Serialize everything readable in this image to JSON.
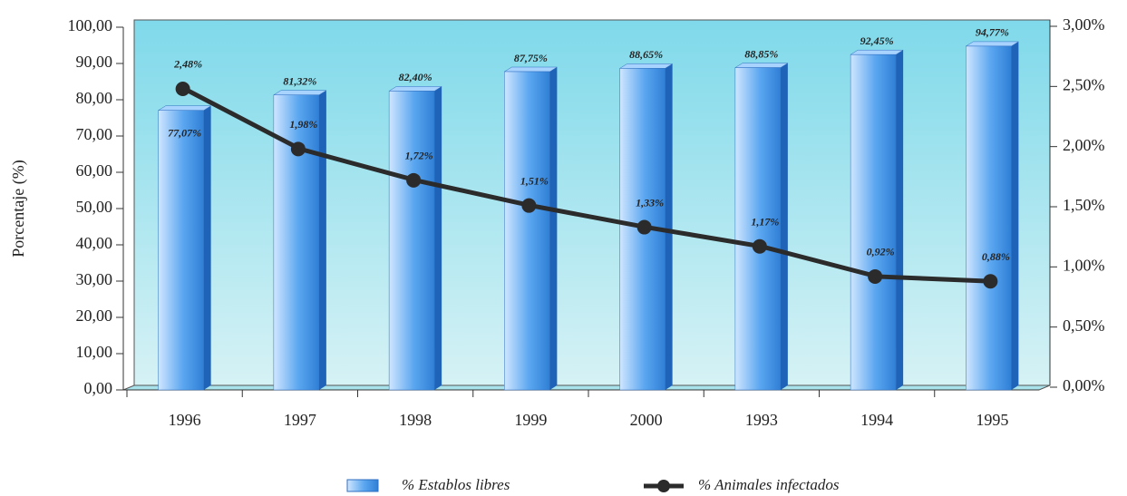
{
  "chart_data": {
    "type": "bar",
    "y_label": "Porcentaje (%)",
    "categories": [
      "1996",
      "1997",
      "1998",
      "1999",
      "2000",
      "1993",
      "1994",
      "1995"
    ],
    "series": [
      {
        "name": "% Establos libres",
        "type": "bar",
        "color": "#3d92e6",
        "values": [
          77.07,
          81.32,
          82.4,
          87.75,
          88.65,
          88.85,
          92.45,
          94.77
        ],
        "value_labels": [
          "77,07%",
          "81,32%",
          "82,40%",
          "87,75%",
          "88,65%",
          "88,85%",
          "92,45%",
          "94,77%"
        ]
      },
      {
        "name": "% Animales infectados",
        "type": "line",
        "axis": "y2",
        "color": "#2b2b2b",
        "values": [
          2.48,
          1.98,
          1.72,
          1.51,
          1.33,
          1.17,
          0.92,
          0.88
        ],
        "value_labels": [
          "2,48%",
          "1,98%",
          "1,72%",
          "1,51%",
          "1,33%",
          "1,17%",
          "0,92%",
          "0,88%"
        ]
      }
    ],
    "ylim": [
      0,
      100
    ],
    "yticks": [
      {
        "value": 0,
        "label": "0,00"
      },
      {
        "value": 10,
        "label": "10,00"
      },
      {
        "value": 20,
        "label": "20,00"
      },
      {
        "value": 30,
        "label": "30,00"
      },
      {
        "value": 40,
        "label": "40,00"
      },
      {
        "value": 50,
        "label": "50,00"
      },
      {
        "value": 60,
        "label": "60,00"
      },
      {
        "value": 70,
        "label": "70,00"
      },
      {
        "value": 80,
        "label": "80,00"
      },
      {
        "value": 90,
        "label": "90,00"
      },
      {
        "value": 100,
        "label": "100,00"
      }
    ],
    "y2lim": [
      0,
      3
    ],
    "y2ticks": [
      {
        "value": 0,
        "label": "0,00%"
      },
      {
        "value": 0.5,
        "label": "0,50%"
      },
      {
        "value": 1,
        "label": "1,00%"
      },
      {
        "value": 1.5,
        "label": "1,50%"
      },
      {
        "value": 2,
        "label": "2,00%"
      },
      {
        "value": 2.5,
        "label": "2,50%"
      },
      {
        "value": 3,
        "label": "3,00%"
      }
    ],
    "legend": "bottom"
  }
}
